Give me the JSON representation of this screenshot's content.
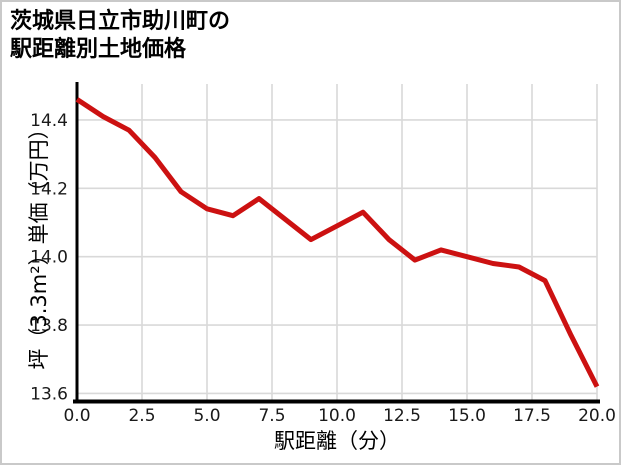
{
  "title": {
    "line1": "茨城県日立市助川町の",
    "line2": "駅距離別土地価格"
  },
  "chart_data": {
    "type": "line",
    "title": "茨城県日立市助川町の駅距離別土地価格",
    "xlabel": "駅距離（分）",
    "ylabel": "坪（3.3m²）単価（万円）",
    "series": [
      {
        "name": "土地価格",
        "x": [
          0,
          1,
          2,
          3,
          4,
          5,
          6,
          7,
          8,
          9,
          10,
          11,
          12,
          13,
          14,
          15,
          16,
          17,
          18,
          19,
          20
        ],
        "y": [
          14.46,
          14.41,
          14.37,
          14.29,
          14.19,
          14.14,
          14.12,
          14.17,
          14.11,
          14.05,
          14.09,
          14.13,
          14.05,
          13.99,
          14.02,
          14.0,
          13.98,
          13.97,
          13.93,
          13.77,
          13.62
        ]
      }
    ],
    "xlim": [
      0,
      20
    ],
    "ylim": [
      13.578,
      14.505
    ],
    "xticks": [
      0,
      2.5,
      5,
      7.5,
      10,
      12.5,
      15,
      17.5,
      20
    ],
    "xtick_labels": [
      "0.0",
      "2.5",
      "5.0",
      "7.5",
      "10.0",
      "12.5",
      "15.0",
      "17.5",
      "20.0"
    ],
    "yticks": [
      13.6,
      13.8,
      14.0,
      14.2,
      14.4
    ],
    "ytick_labels": [
      "13.6",
      "13.8",
      "14.0",
      "14.2",
      "14.4"
    ],
    "grid": true,
    "legend": "none",
    "colors": {
      "line": "#cc1111",
      "grid": "#d9d9d9",
      "axis": "#000000",
      "tick_text": "#1a1a1a",
      "background": "#ffffff",
      "border": "#c9c9c9"
    }
  }
}
